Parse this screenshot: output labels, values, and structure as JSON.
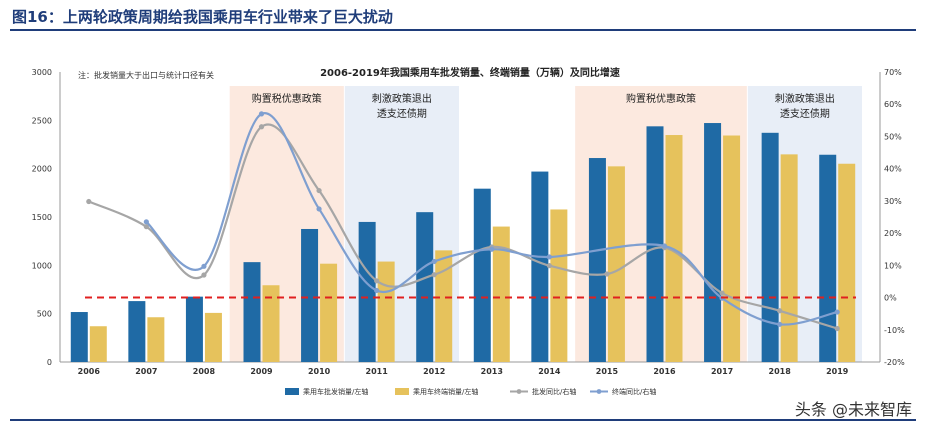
{
  "figure": {
    "title": "图16：上两轮政策周期给我国乘用车行业带来了巨大扰动",
    "watermark": "头条 @未来智库"
  },
  "chart_data": {
    "type": "bar",
    "title": "2006-2019年我国乘用车批发销量、终端销量（万辆）及同比增速",
    "note": "注：批发销量大于出口与统计口径有关",
    "categories": [
      "2006",
      "2007",
      "2008",
      "2009",
      "2010",
      "2011",
      "2012",
      "2013",
      "2014",
      "2015",
      "2016",
      "2017",
      "2018",
      "2019"
    ],
    "y_left": {
      "min": 0,
      "max": 3000,
      "ticks": [
        0,
        500,
        1000,
        1500,
        2000,
        2500,
        3000
      ]
    },
    "y_right": {
      "min": -20,
      "max": 70,
      "ticks": [
        "-20%",
        "-10%",
        "0%",
        "10%",
        "20%",
        "30%",
        "40%",
        "50%",
        "60%",
        "70%"
      ]
    },
    "reference_line": {
      "value": 0,
      "axis": "right",
      "color": "#e02020",
      "style": "dashed"
    },
    "regions": [
      {
        "from": "2009",
        "to": "2010",
        "label": [
          "购置税优惠政策"
        ],
        "color": "#fce9df"
      },
      {
        "from": "2011",
        "to": "2012",
        "label": [
          "刺激政策退出",
          "透支还债期"
        ],
        "color": "#e8eef7"
      },
      {
        "from": "2015",
        "to": "2017",
        "label": [
          "购置税优惠政策"
        ],
        "color": "#fce9df"
      },
      {
        "from": "2018",
        "to": "2019",
        "label": [
          "刺激政策退出",
          "透支还债期"
        ],
        "color": "#e8eef7"
      }
    ],
    "series": [
      {
        "name": "乘用车批发销量/左轴",
        "type": "bar",
        "axis": "left",
        "color": "#1f6aa5",
        "values": [
          517,
          630,
          676,
          1033,
          1376,
          1449,
          1550,
          1793,
          1970,
          2110,
          2438,
          2472,
          2371,
          2144
        ]
      },
      {
        "name": "乘用车终端销量/左轴",
        "type": "bar",
        "axis": "left",
        "color": "#e6c25c",
        "values": [
          370,
          463,
          508,
          794,
          1017,
          1039,
          1155,
          1401,
          1578,
          2024,
          2348,
          2343,
          2148,
          2051
        ]
      },
      {
        "name": "批发同比/右轴",
        "type": "line",
        "axis": "right",
        "color": "#a6a6a6",
        "values": [
          29.8,
          22.0,
          7.0,
          53.0,
          33.2,
          5.2,
          7.1,
          15.7,
          9.9,
          7.3,
          15.5,
          1.4,
          -4.1,
          -9.6
        ]
      },
      {
        "name": "终端同比/右轴",
        "type": "line",
        "axis": "right",
        "color": "#7f9fd0",
        "values": [
          null,
          23.5,
          9.7,
          57.0,
          27.5,
          2.2,
          11.2,
          15.0,
          12.6,
          null,
          16.0,
          -0.2,
          -8.3,
          -4.5
        ]
      }
    ],
    "legend_position": "bottom"
  }
}
